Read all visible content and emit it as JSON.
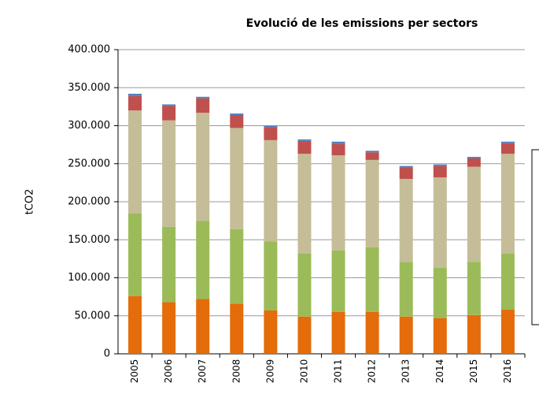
{
  "chart_data": {
    "type": "stacked_bar",
    "title": "Evolució de les emissions per sectors",
    "y_label": "tCO2",
    "categories": [
      "2005",
      "2006",
      "2007",
      "2008",
      "2009",
      "2010",
      "2011",
      "2012",
      "2013",
      "2014",
      "2015",
      "2016"
    ],
    "series": [
      {
        "color": "#e46c0a",
        "values": [
          76000,
          68000,
          72000,
          66000,
          57000,
          49000,
          55000,
          55000,
          49000,
          47000,
          51000,
          58000
        ]
      },
      {
        "color": "#9bbb59",
        "values": [
          108500,
          99000,
          103000,
          98000,
          91000,
          83000,
          81000,
          85000,
          72000,
          66000,
          70000,
          74000
        ]
      },
      {
        "color": "#c4bd97",
        "values": [
          135500,
          140000,
          142000,
          133000,
          133000,
          131000,
          125000,
          115000,
          109000,
          119000,
          125000,
          131000
        ]
      },
      {
        "color": "#c0504d",
        "values": [
          19000,
          19000,
          19000,
          17000,
          17000,
          17000,
          15000,
          10000,
          15000,
          15000,
          11000,
          14000
        ]
      },
      {
        "color": "#4f81bd",
        "values": [
          3000,
          2000,
          2000,
          2000,
          2000,
          2000,
          3000,
          2000,
          2000,
          2000,
          2000,
          2000
        ]
      }
    ],
    "ylim": [
      0,
      400000
    ],
    "yticks": [
      0,
      {
        "value": 50000,
        "label": "50.000"
      },
      {
        "value": 100000,
        "label": "100.000"
      },
      {
        "value": 150000,
        "label": "150.000"
      },
      {
        "value": 200000,
        "label": "200.000"
      },
      {
        "value": 250000,
        "label": "250.000"
      },
      {
        "value": 300000,
        "label": "300.000"
      },
      {
        "value": 350000,
        "label": "350.000"
      },
      {
        "value": 400000,
        "label": "400.000"
      }
    ],
    "grid": true
  }
}
